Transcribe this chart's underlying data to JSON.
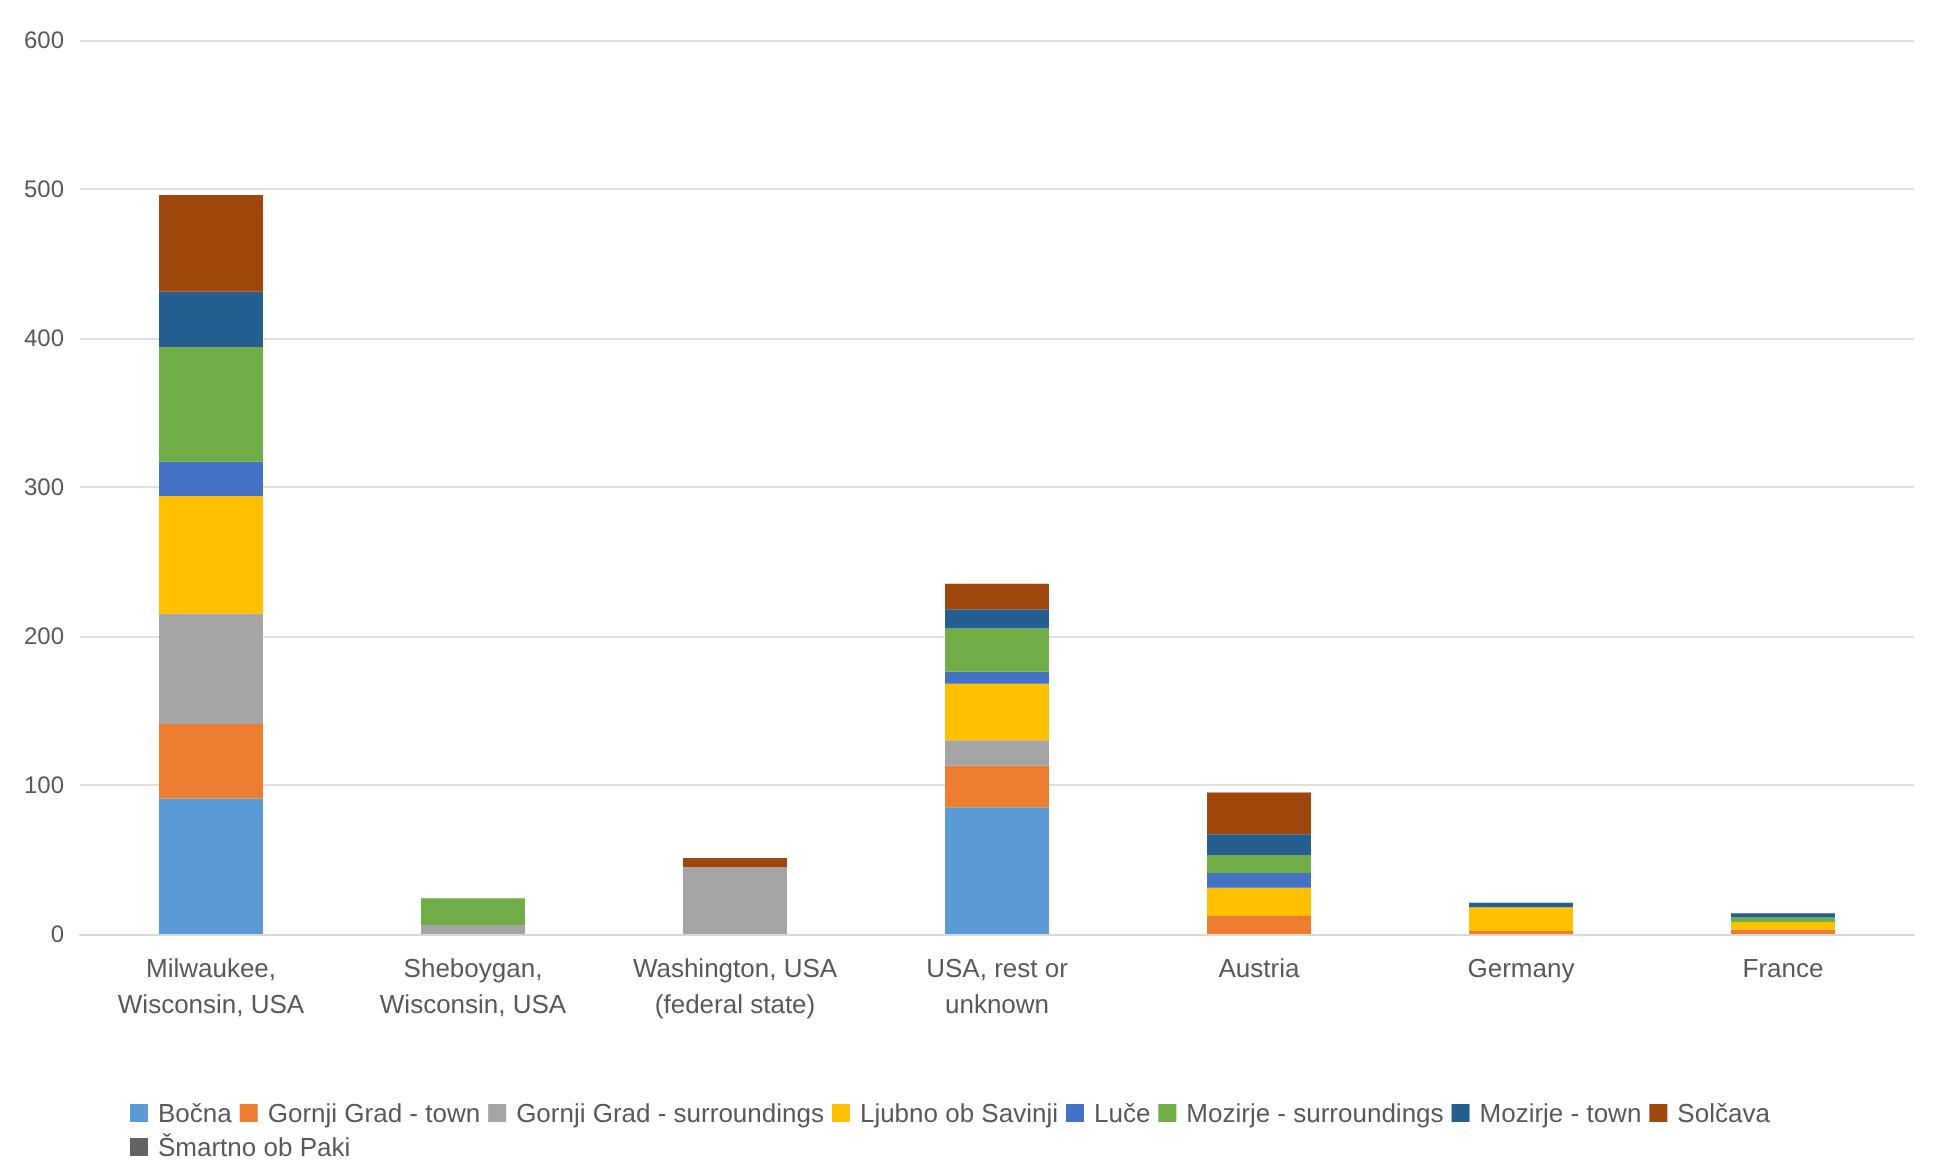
{
  "chart_data": {
    "type": "bar",
    "stacked": true,
    "categories": [
      "Milwaukee,\nWisconsin, USA",
      "Sheboygan,\nWisconsin, USA",
      "Washington, USA\n(federal state)",
      "USA, rest or\nunknown",
      "Austria",
      "Germany",
      "France"
    ],
    "series": [
      {
        "name": "Bočna",
        "color": "#5b9bd5",
        "values": [
          91,
          0,
          0,
          85,
          0,
          0,
          0
        ]
      },
      {
        "name": "Gornji Grad - town",
        "color": "#ed7d31",
        "values": [
          50,
          0,
          0,
          28,
          12,
          2,
          3
        ]
      },
      {
        "name": "Gornji Grad - surroundings",
        "color": "#a5a5a5",
        "values": [
          74,
          6,
          45,
          17,
          null,
          0,
          0
        ]
      },
      {
        "name": "Ljubno ob Savinji",
        "color": "#ffc000",
        "values": [
          79,
          0,
          0,
          38,
          19,
          16,
          5
        ]
      },
      {
        "name": "Luče",
        "color": "#4472c4",
        "values": [
          23,
          0,
          0,
          8,
          10,
          0,
          0
        ]
      },
      {
        "name": "Mozirje - surroundings",
        "color": "#70ad47",
        "values": [
          77,
          18,
          0,
          29,
          12,
          0,
          3
        ]
      },
      {
        "name": "Mozirje - town",
        "color": "#255e91",
        "values": [
          37,
          0,
          0,
          13,
          14,
          3,
          3
        ]
      },
      {
        "name": "Solčava",
        "color": "#9e480e",
        "values": [
          65,
          0,
          6,
          17,
          28,
          0,
          0
        ]
      },
      {
        "name": "Šmartno ob Paki",
        "color": "#636363",
        "values": [
          0,
          0,
          0,
          0,
          0,
          0,
          0
        ]
      }
    ],
    "ylim": [
      0,
      600
    ],
    "yticks": [
      0,
      100,
      200,
      300,
      400,
      500,
      600
    ],
    "grid": "y",
    "legend": "bottom"
  }
}
